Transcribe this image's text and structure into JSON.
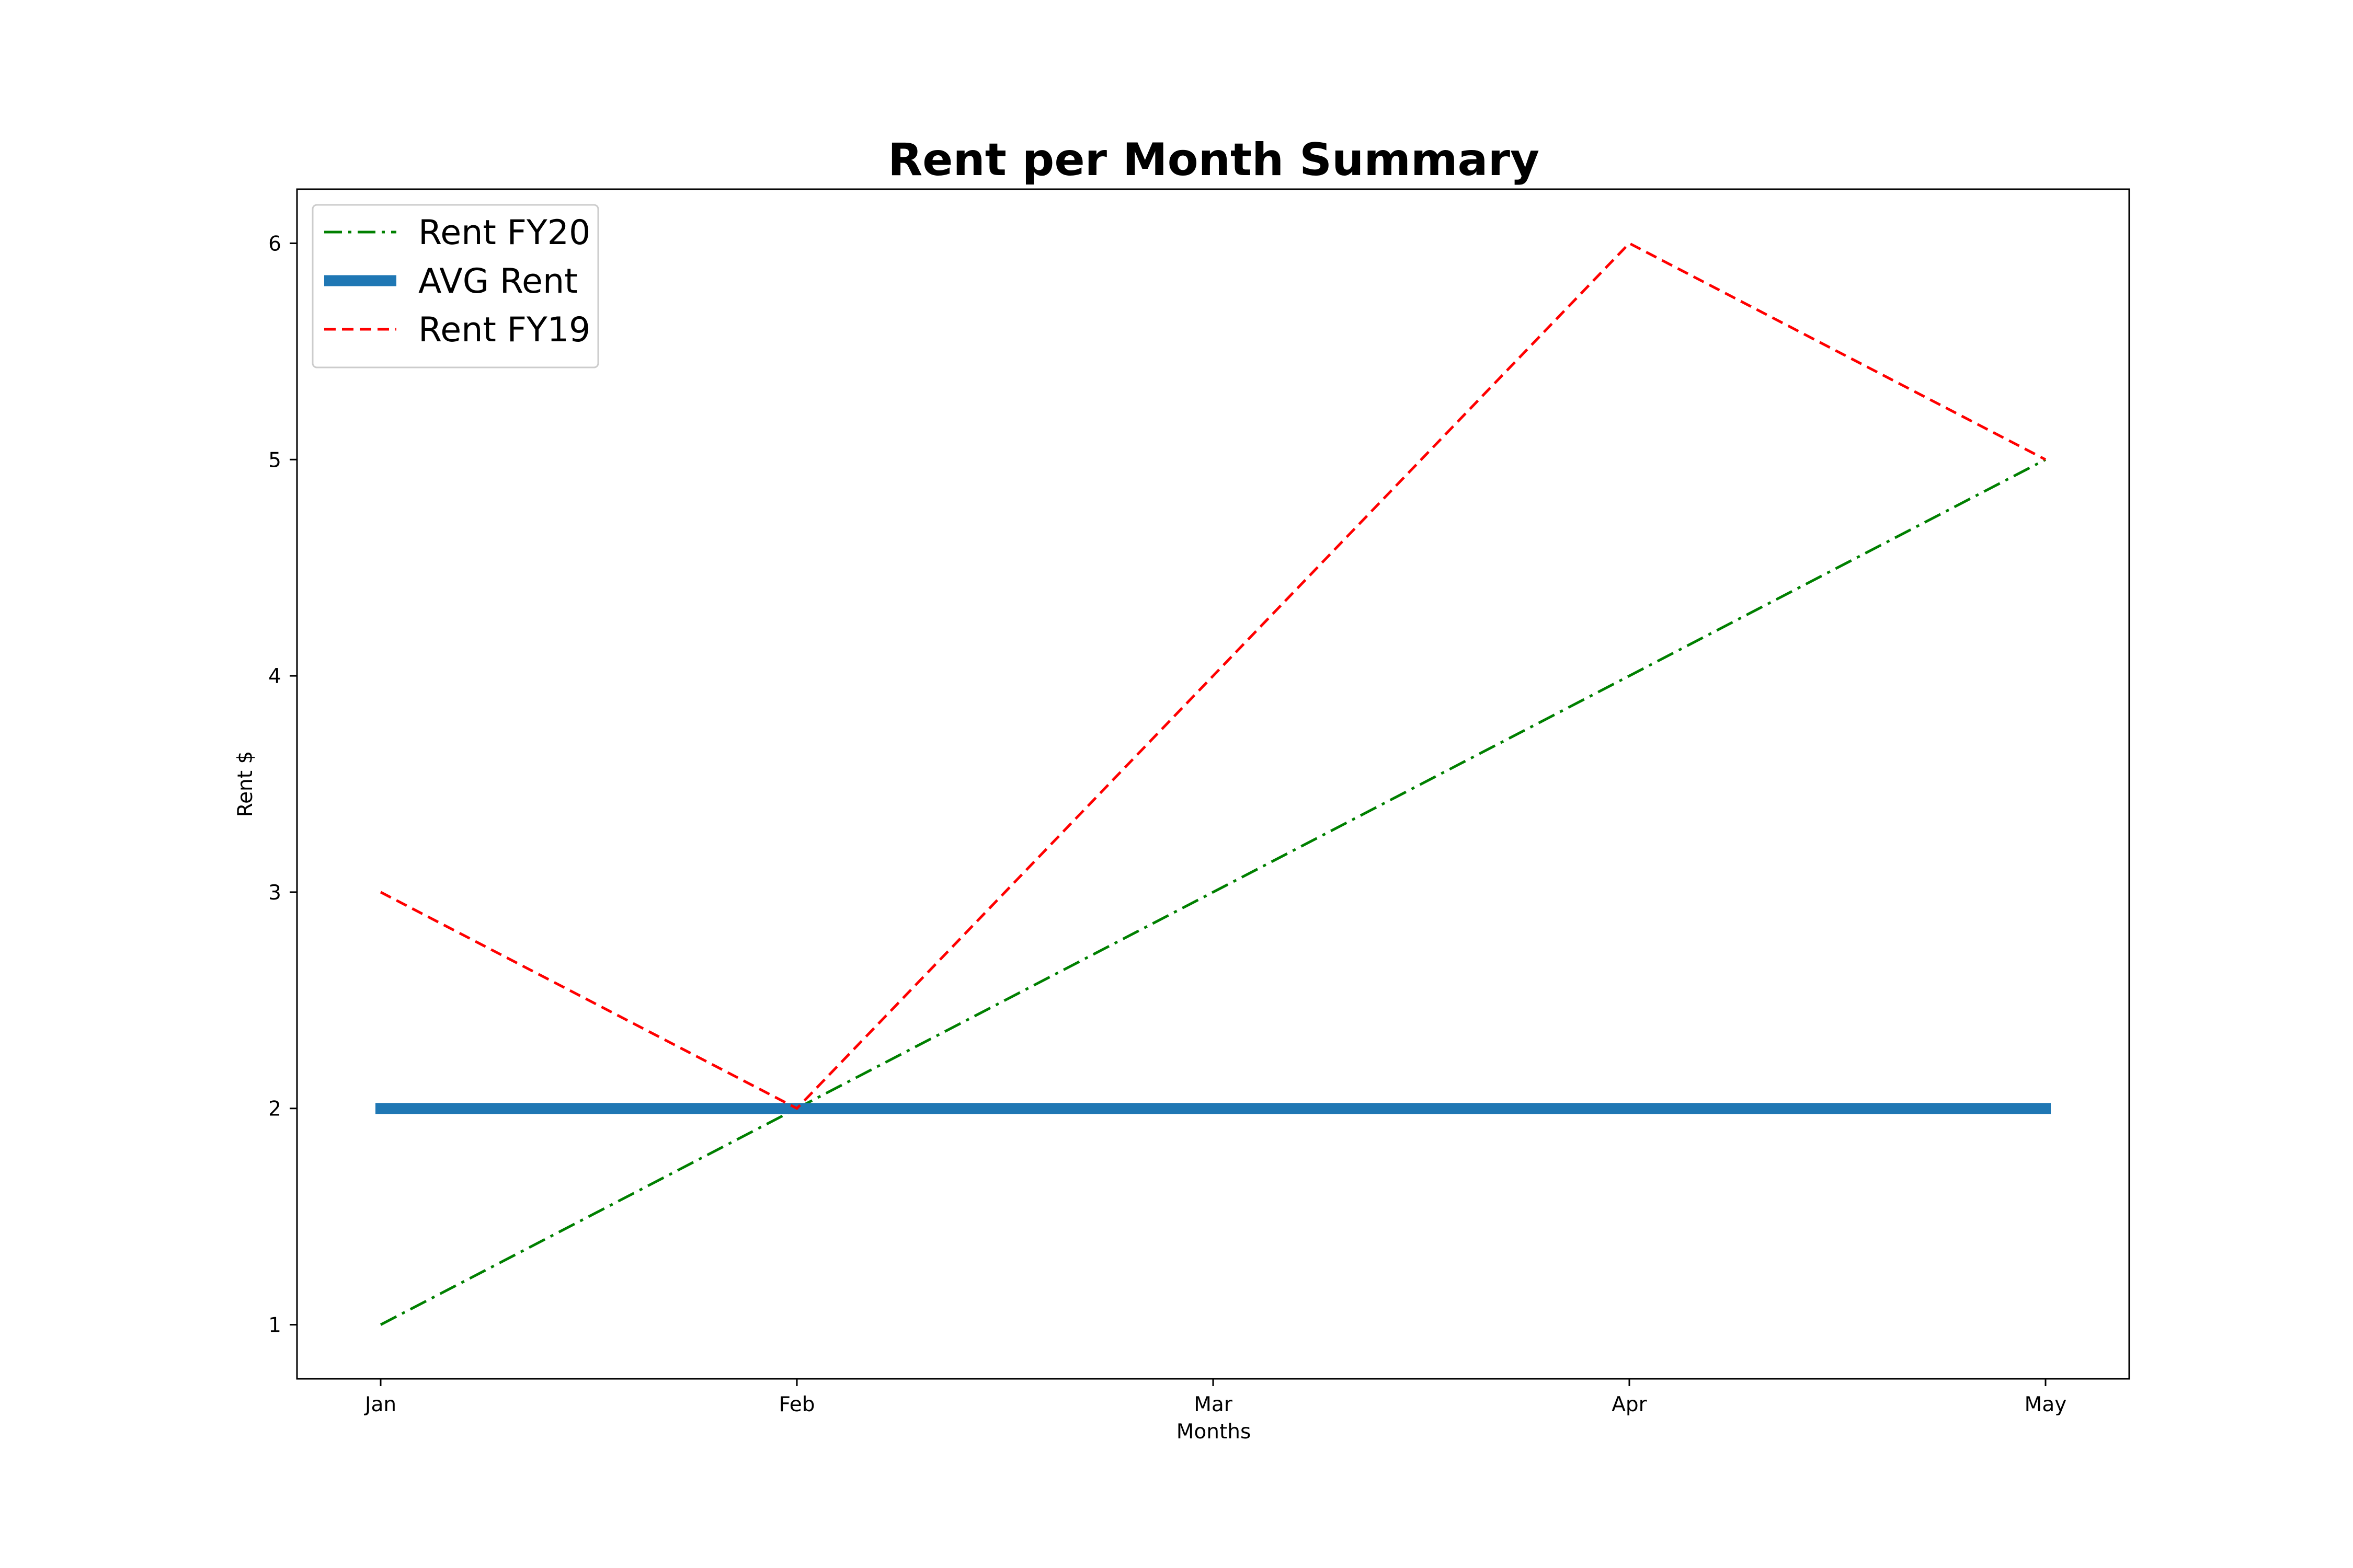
{
  "chart_data": {
    "type": "line",
    "title": "Rent per Month Summary",
    "xlabel": "Months",
    "ylabel": "Rent $",
    "categories": [
      "Jan",
      "Feb",
      "Mar",
      "Apr",
      "May"
    ],
    "y_ticks": [
      1,
      2,
      3,
      4,
      5,
      6
    ],
    "ylim": [
      0.75,
      6.25
    ],
    "grid": false,
    "legend_position": "upper-left",
    "series": [
      {
        "name": "Rent FY20",
        "values": [
          1,
          2,
          3,
          4,
          5
        ],
        "color": "#008000",
        "style": "dash-dot"
      },
      {
        "name": "AVG Rent",
        "values": [
          2,
          2,
          2,
          2,
          2
        ],
        "color": "#1f77b4",
        "style": "solid-thick"
      },
      {
        "name": "Rent FY19",
        "values": [
          3,
          2,
          4,
          6,
          5
        ],
        "color": "#ff0000",
        "style": "dashed"
      }
    ]
  }
}
